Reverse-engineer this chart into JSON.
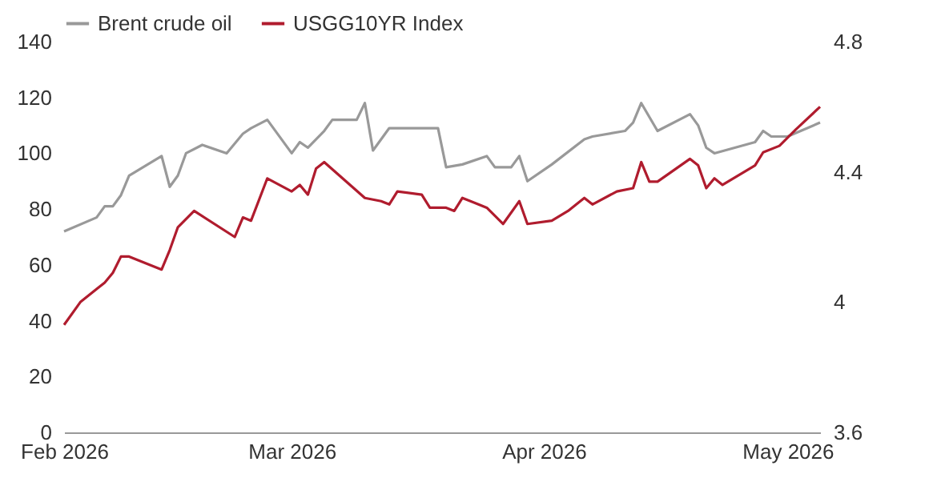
{
  "chart_data": {
    "type": "line",
    "legend": "top",
    "grid": false,
    "xlim": [
      "2026-02-01",
      "2026-05-05"
    ],
    "xticks": [
      {
        "value": "2026-02-01",
        "label": "Feb 2026"
      },
      {
        "value": "2026-03-01",
        "label": "Mar 2026"
      },
      {
        "value": "2026-04-01",
        "label": "Apr 2026"
      },
      {
        "value": "2026-05-01",
        "label": "May 2026"
      }
    ],
    "ylim": [
      0,
      140
    ],
    "yticks": [
      0,
      20,
      40,
      60,
      80,
      100,
      120,
      140
    ],
    "y2lim": [
      3.6,
      4.8
    ],
    "y2ticks": [
      3.6,
      4,
      4.4,
      4.8
    ],
    "series": [
      {
        "name": "Brent crude oil",
        "color": "#999999",
        "x": [
          "2026-02-01",
          "2026-02-05",
          "2026-02-06",
          "2026-02-07",
          "2026-02-08",
          "2026-02-09",
          "2026-02-13",
          "2026-02-14",
          "2026-02-15",
          "2026-02-16",
          "2026-02-18",
          "2026-02-21",
          "2026-02-23",
          "2026-02-24",
          "2026-02-26",
          "2026-03-01",
          "2026-03-02",
          "2026-03-03",
          "2026-03-05",
          "2026-03-06",
          "2026-03-09",
          "2026-03-10",
          "2026-03-11",
          "2026-03-13",
          "2026-03-19",
          "2026-03-20",
          "2026-03-22",
          "2026-03-25",
          "2026-03-26",
          "2026-03-28",
          "2026-03-29",
          "2026-03-30",
          "2026-04-02",
          "2026-04-06",
          "2026-04-07",
          "2026-04-11",
          "2026-04-12",
          "2026-04-13",
          "2026-04-15",
          "2026-04-19",
          "2026-04-20",
          "2026-04-21",
          "2026-04-22",
          "2026-04-27",
          "2026-04-28",
          "2026-04-29",
          "2026-05-01",
          "2026-05-05"
        ],
        "values": [
          72,
          77,
          81,
          81,
          85,
          92,
          99,
          88,
          92,
          100,
          103,
          100,
          107,
          109,
          112,
          100,
          104,
          102,
          108,
          112,
          112,
          118,
          101,
          109,
          109,
          95,
          96,
          99,
          95,
          95,
          99,
          90,
          96,
          105,
          106,
          108,
          111,
          118,
          108,
          114,
          110,
          102,
          100,
          104,
          108,
          106,
          106,
          111
        ]
      },
      {
        "name": "USGG10YR Index",
        "color": "#b01c2e",
        "axis": "y2",
        "x": [
          "2026-02-01",
          "2026-02-03",
          "2026-02-05",
          "2026-02-06",
          "2026-02-07",
          "2026-02-08",
          "2026-02-09",
          "2026-02-13",
          "2026-02-14",
          "2026-02-15",
          "2026-02-17",
          "2026-02-22",
          "2026-02-23",
          "2026-02-24",
          "2026-02-26",
          "2026-03-01",
          "2026-03-02",
          "2026-03-03",
          "2026-03-04",
          "2026-03-05",
          "2026-03-10",
          "2026-03-12",
          "2026-03-13",
          "2026-03-14",
          "2026-03-17",
          "2026-03-18",
          "2026-03-20",
          "2026-03-21",
          "2026-03-22",
          "2026-03-25",
          "2026-03-27",
          "2026-03-29",
          "2026-03-30",
          "2026-04-02",
          "2026-04-04",
          "2026-04-06",
          "2026-04-07",
          "2026-04-10",
          "2026-04-12",
          "2026-04-13",
          "2026-04-14",
          "2026-04-15",
          "2026-04-19",
          "2026-04-20",
          "2026-04-21",
          "2026-04-22",
          "2026-04-23",
          "2026-04-27",
          "2026-04-28",
          "2026-04-30",
          "2026-05-02",
          "2026-05-05"
        ],
        "values": [
          3.93,
          4.0,
          4.04,
          4.06,
          4.09,
          4.14,
          4.14,
          4.1,
          4.16,
          4.23,
          4.28,
          4.2,
          4.26,
          4.25,
          4.38,
          4.34,
          4.36,
          4.33,
          4.41,
          4.43,
          4.32,
          4.31,
          4.3,
          4.34,
          4.33,
          4.29,
          4.29,
          4.28,
          4.32,
          4.29,
          4.24,
          4.31,
          4.24,
          4.25,
          4.28,
          4.32,
          4.3,
          4.34,
          4.35,
          4.43,
          4.37,
          4.37,
          4.44,
          4.42,
          4.35,
          4.38,
          4.36,
          4.42,
          4.46,
          4.48,
          4.53,
          4.6
        ]
      }
    ]
  }
}
